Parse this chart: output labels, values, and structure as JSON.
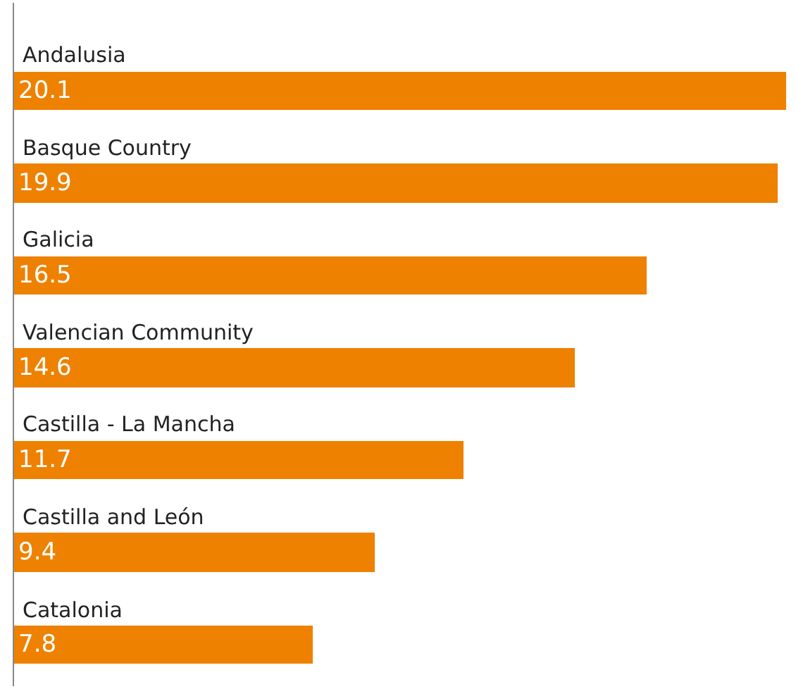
{
  "chart_data": {
    "type": "bar",
    "orientation": "horizontal",
    "categories": [
      "Andalusia",
      "Basque Country",
      "Galicia",
      "Valencian Community",
      "Castilla - La Mancha",
      "Castilla and León",
      "Catalonia"
    ],
    "values": [
      20.1,
      19.9,
      16.5,
      14.6,
      11.7,
      9.4,
      7.8
    ],
    "color": "#ee8100",
    "data_labels": true
  }
}
